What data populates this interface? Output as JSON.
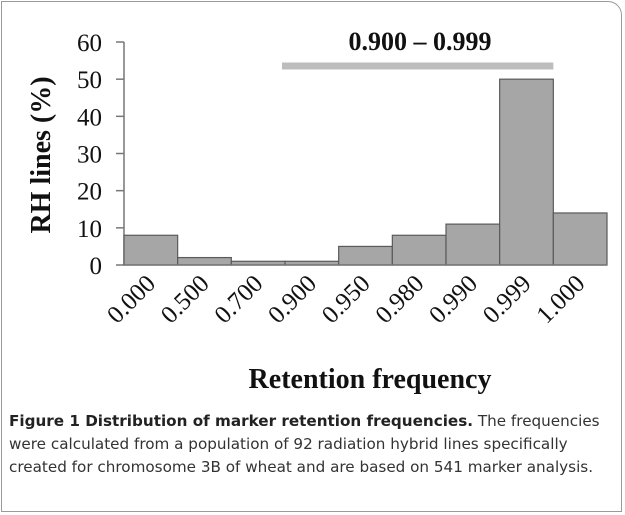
{
  "chart_data": {
    "type": "bar",
    "categories": [
      "0.000",
      "0.500",
      "0.700",
      "0.900",
      "0.950",
      "0.980",
      "0.990",
      "0.999",
      "1.000"
    ],
    "values": [
      8,
      2,
      1,
      1,
      5,
      8,
      11,
      50,
      14
    ],
    "color": "#a6a6a6",
    "ylim": [
      0,
      60
    ],
    "yticks": [
      0,
      10,
      20,
      30,
      40,
      50,
      60
    ],
    "y_label": "RH lines (%)",
    "x_label": "Retention frequency",
    "annotation": "0.900 – 0.999",
    "grid": false
  },
  "caption": {
    "label": "Figure 1 Distribution of marker retention frequencies.",
    "text": "The frequencies were calculated from a population of 92 radiation hybrid lines specifically created for chromosome 3B of wheat and are based on 541 marker analysis."
  }
}
